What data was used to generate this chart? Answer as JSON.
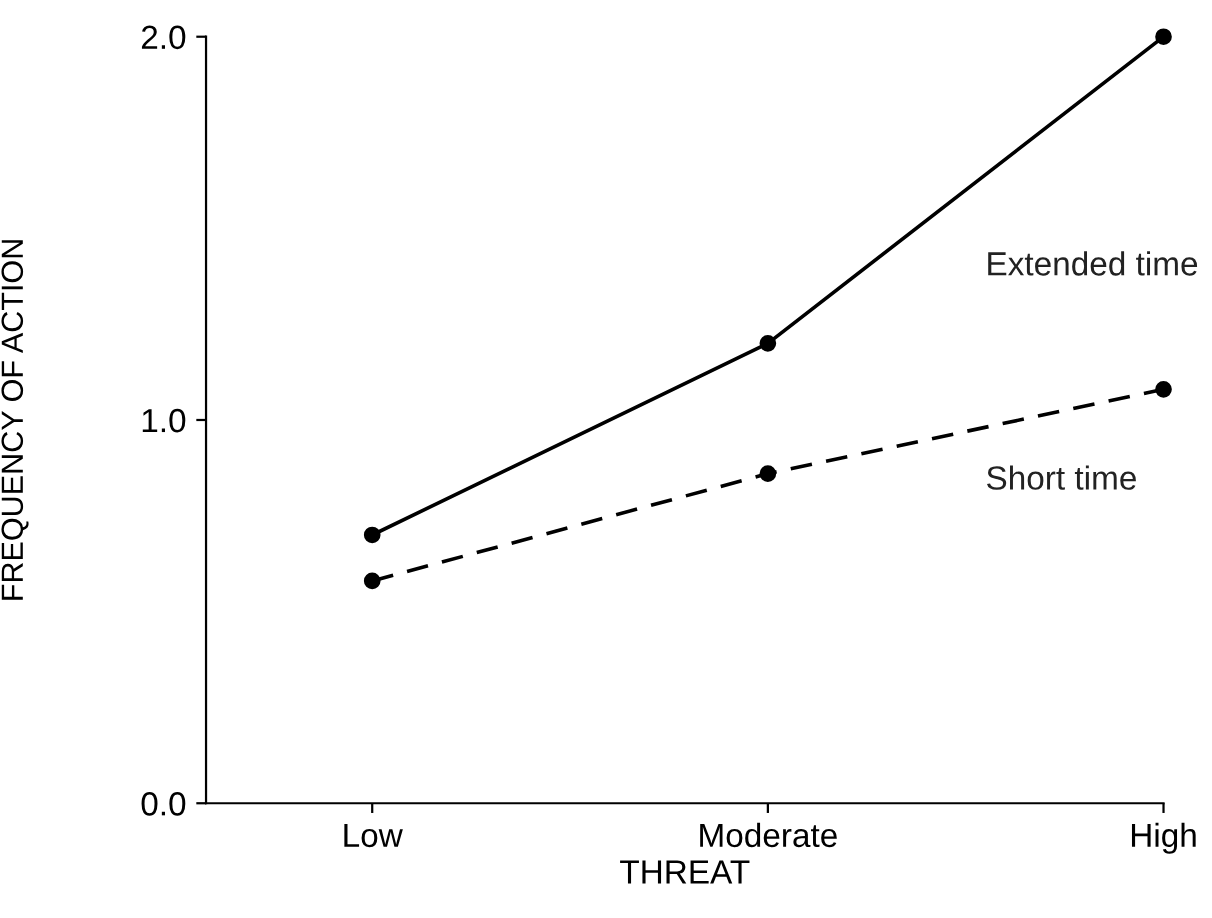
{
  "chart_data": {
    "type": "line",
    "xlabel": "THREAT",
    "ylabel": "FREQUENCY OF ACTION",
    "categories": [
      "Low",
      "Moderate",
      "High"
    ],
    "series": [
      {
        "name": "Extended time",
        "color": "#000000",
        "values": [
          0.7,
          1.2,
          2.0
        ],
        "line_style": "solid"
      },
      {
        "name": "Short time",
        "color": "#000000",
        "values": [
          0.58,
          0.86,
          1.08
        ],
        "line_style": "dashed"
      }
    ],
    "ylim": [
      0,
      2.0
    ],
    "yticks": [
      {
        "value": 0,
        "label": "0.0"
      },
      {
        "value": 1,
        "label": "1.0"
      },
      {
        "value": 2,
        "label": "2.0"
      }
    ],
    "marker": "circle",
    "grid": false,
    "legend": false
  }
}
